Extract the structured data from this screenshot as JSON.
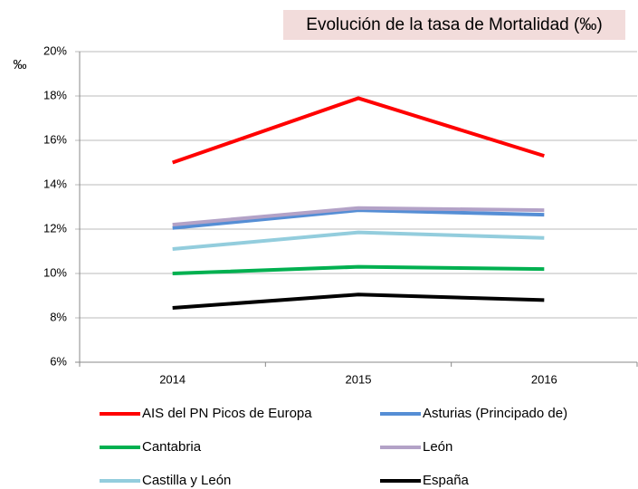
{
  "chart_data": {
    "type": "line",
    "title": "Evolución de la tasa de Mortalidad (‰)",
    "y_label": "‰",
    "categories": [
      "2014",
      "2015",
      "2016"
    ],
    "series": [
      {
        "name": "AIS del PN Picos de Europa",
        "color": "#ff0000",
        "values": [
          15.0,
          17.9,
          15.3
        ]
      },
      {
        "name": "Asturias (Principado de)",
        "color": "#558ed5",
        "values": [
          12.05,
          12.85,
          12.65
        ]
      },
      {
        "name": "Cantabria",
        "color": "#00b050",
        "values": [
          10.0,
          10.3,
          10.2
        ]
      },
      {
        "name": "León",
        "color": "#b3a2c7",
        "values": [
          12.2,
          12.95,
          12.85
        ]
      },
      {
        "name": "Castilla y León",
        "color": "#93cddd",
        "values": [
          11.1,
          11.85,
          11.6
        ]
      },
      {
        "name": "España",
        "color": "#000000",
        "values": [
          8.45,
          9.05,
          8.8
        ]
      }
    ],
    "ylim": [
      6,
      20
    ],
    "yticks": [
      {
        "value": 6,
        "label": "6%"
      },
      {
        "value": 8,
        "label": "8%"
      },
      {
        "value": 10,
        "label": "10%"
      },
      {
        "value": 12,
        "label": "12%"
      },
      {
        "value": 14,
        "label": "14%"
      },
      {
        "value": 16,
        "label": "16%"
      },
      {
        "value": 18,
        "label": "18%"
      },
      {
        "value": 20,
        "label": "20%"
      }
    ],
    "grid": true
  }
}
